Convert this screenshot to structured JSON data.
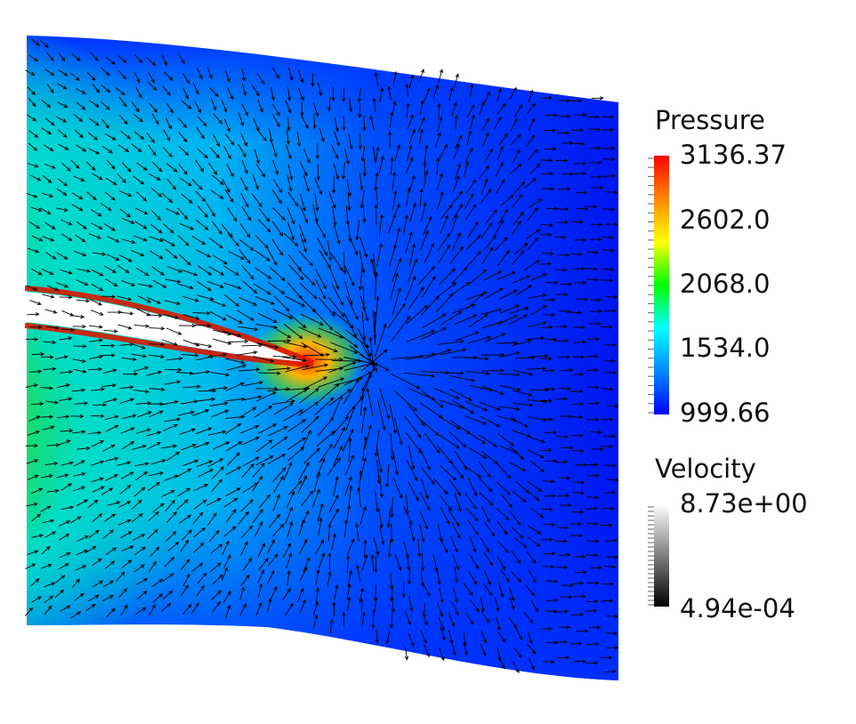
{
  "pressure_legend": {
    "title": "Pressure",
    "labels": [
      "3136.37",
      "2602.0",
      "2068.0",
      "1534.0",
      "999.66"
    ],
    "colormap": [
      "#0000ff",
      "#0088ff",
      "#00ffff",
      "#00ff00",
      "#ffff00",
      "#ff8800",
      "#ff0000"
    ]
  },
  "velocity_legend": {
    "title": "Velocity",
    "labels": [
      "8.73e+00",
      "4.94e-04"
    ],
    "colormap": [
      "#000000",
      "#ffffff"
    ]
  },
  "colors": {
    "background": "#ffffff",
    "arrow": "#000000"
  }
}
